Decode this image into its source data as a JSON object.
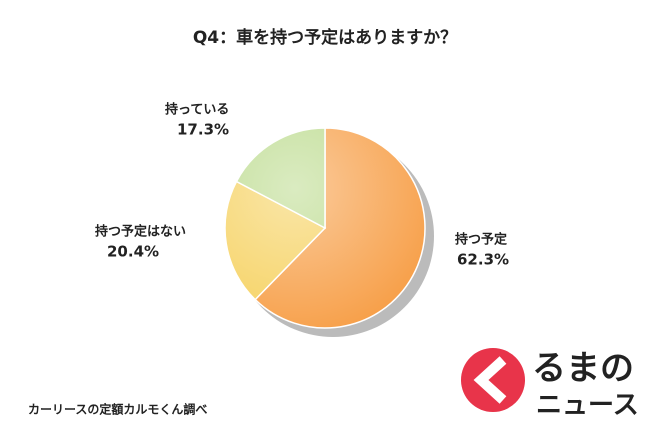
{
  "chart_data": {
    "type": "pie",
    "title": "Q4：車を持つ予定はありますか？",
    "categories": [
      "持つ予定",
      "持つ予定はない",
      "持っている"
    ],
    "values": [
      62.3,
      20.4,
      17.3
    ],
    "value_labels": [
      "62.3%",
      "20.4%",
      "17.3%"
    ],
    "colors": [
      "#f7a04a",
      "#f6d262",
      "#bcdb8e"
    ],
    "source": "カーリースの定額カルモくん調べ"
  },
  "watermark": {
    "line1": "るまの",
    "line2": "ニュース"
  }
}
